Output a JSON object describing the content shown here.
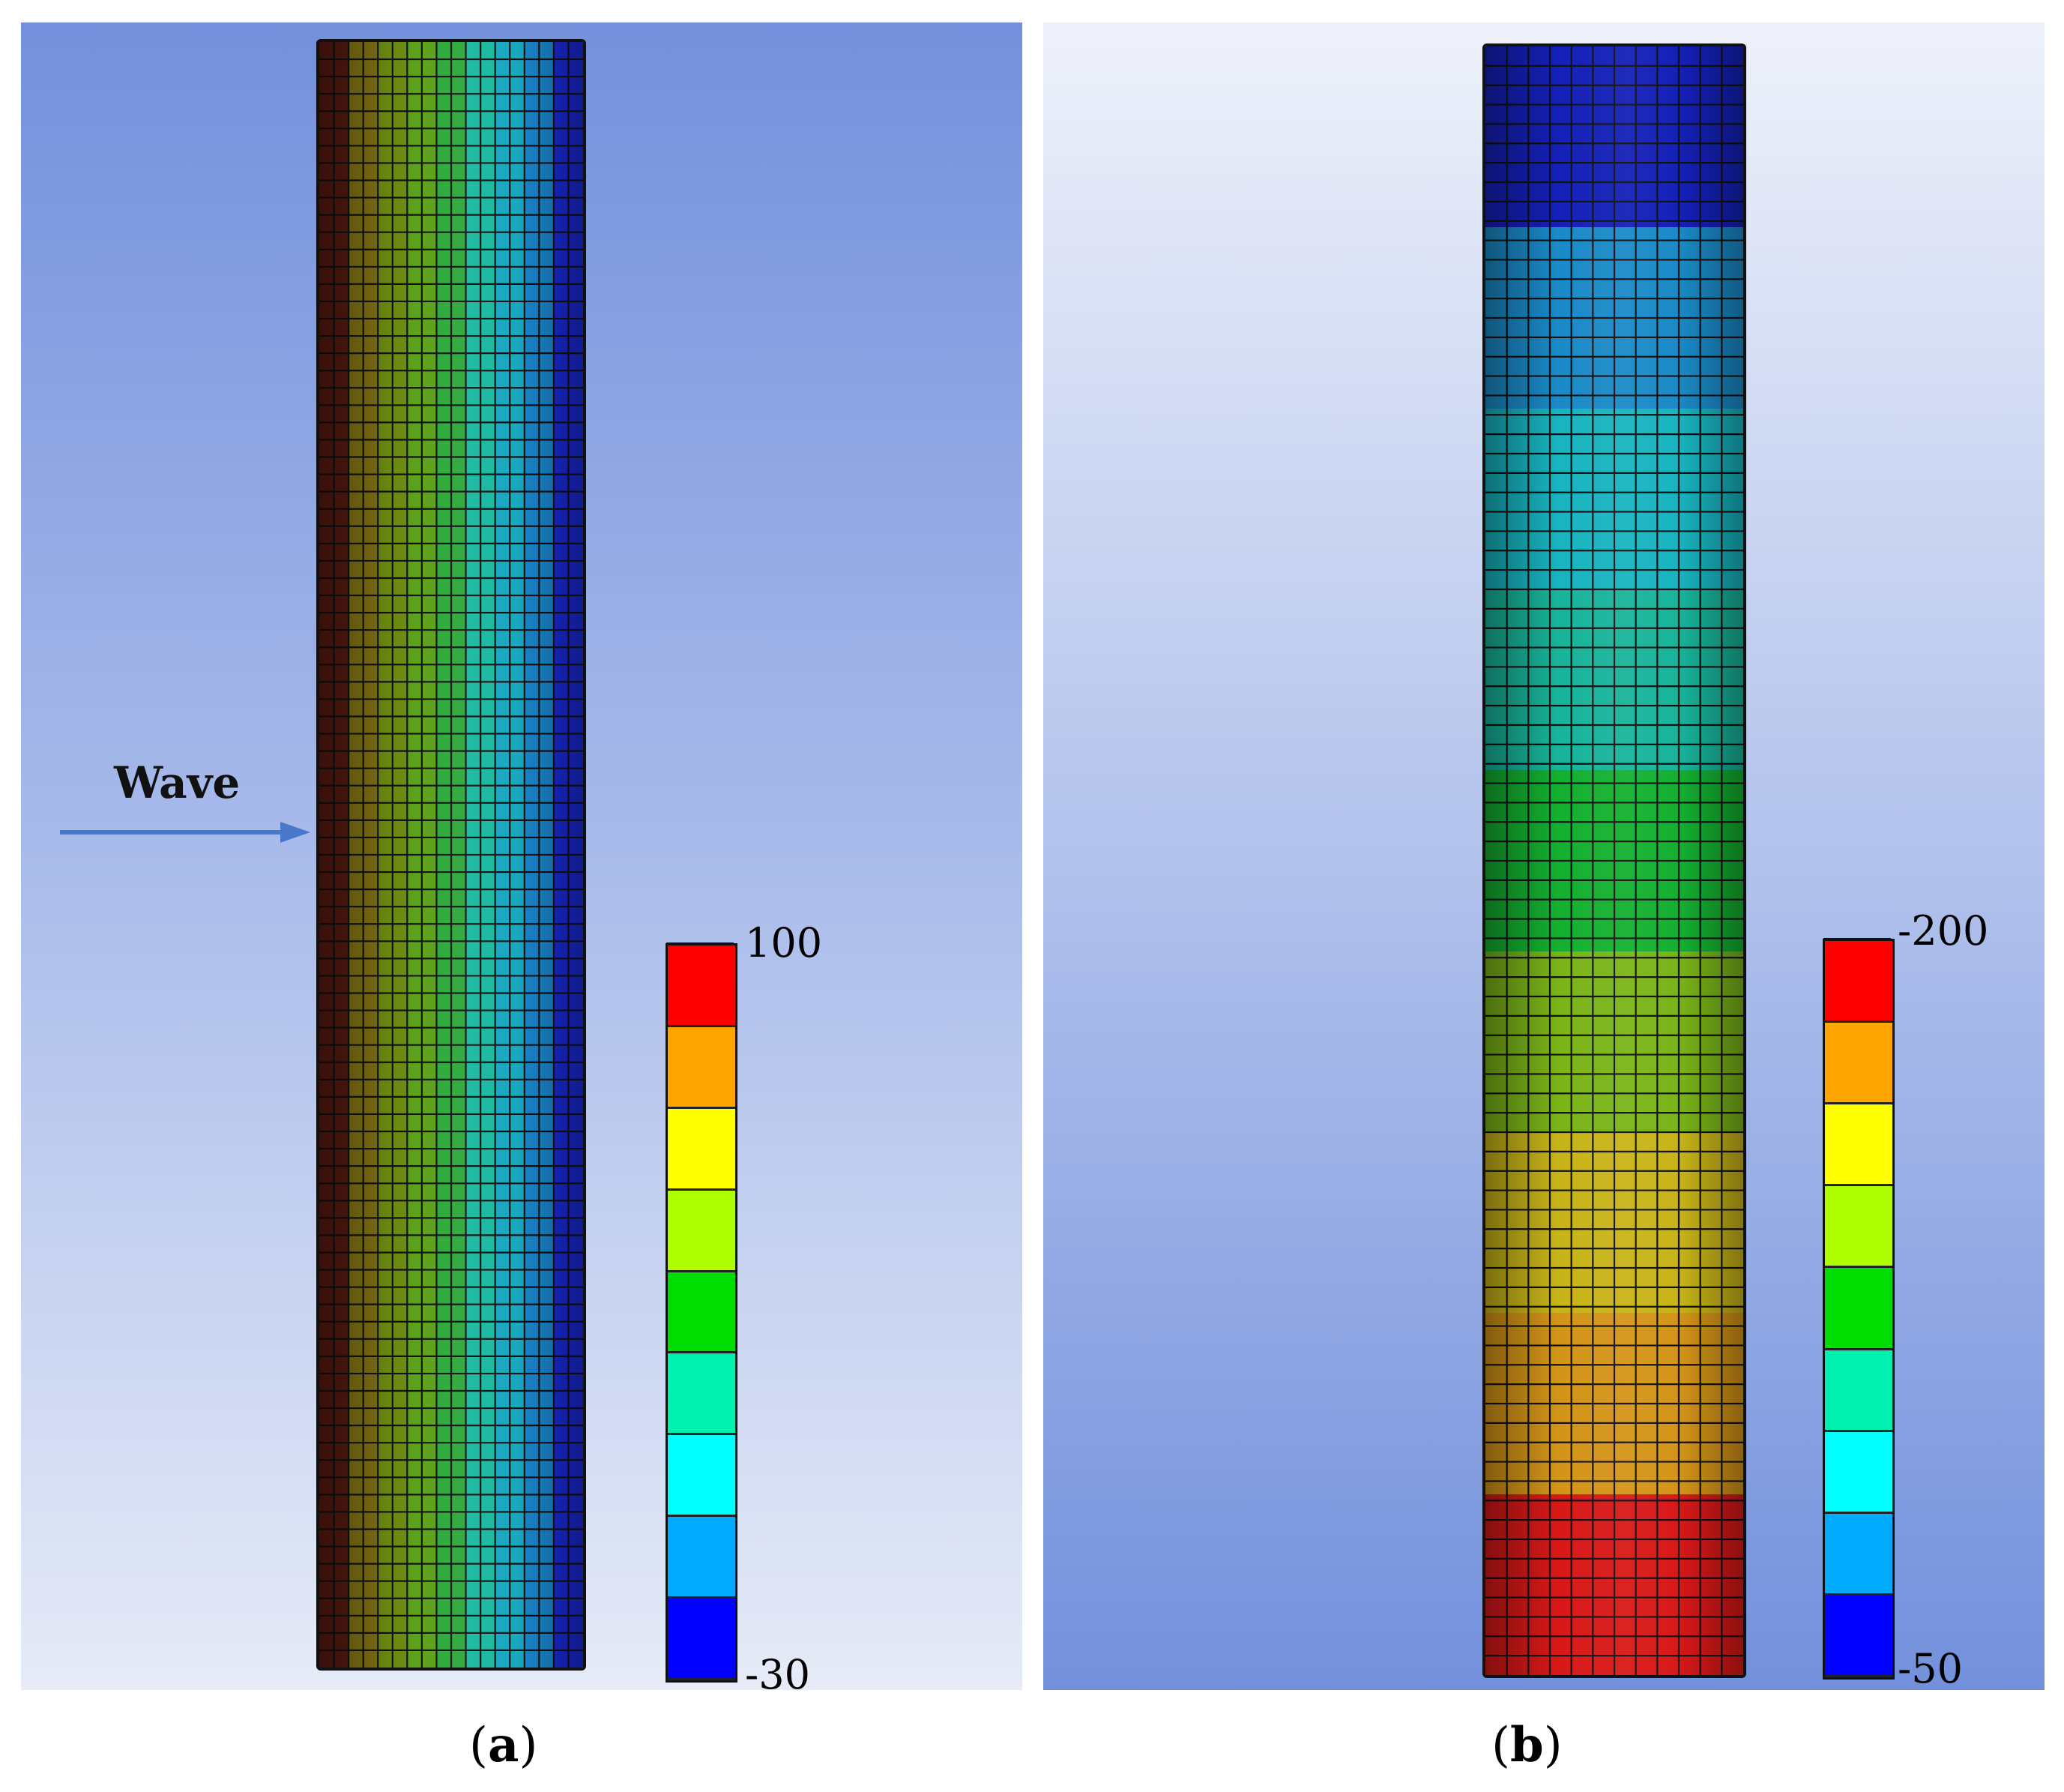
{
  "panel_a": {
    "wave_label": "Wave",
    "legend_max": "100",
    "legend_min": "-30",
    "caption_letter": "a",
    "bands_left_to_right": [
      "#5a1a12",
      "#7e7012",
      "#6a8a10",
      "#5aa018",
      "#2aa838",
      "#18b8a0",
      "#18a8c0",
      "#1888d0",
      "#1a2ad8"
    ]
  },
  "panel_b": {
    "legend_max": "-200",
    "legend_min": "-50",
    "caption_letter": "b",
    "bands_top_to_bottom": [
      "#1420b8",
      "#1a8ac8",
      "#18b4c0",
      "#18b49a",
      "#14b030",
      "#7ab418",
      "#c8b418",
      "#d49418",
      "#d81818"
    ]
  },
  "legend_colors_top_to_bottom": [
    "#ff0000",
    "#ffa500",
    "#ffff00",
    "#b0ff00",
    "#00dd00",
    "#00f0b0",
    "#00ffff",
    "#00aaff",
    "#0000ff"
  ],
  "captions": {
    "open": "(",
    "close": ")"
  }
}
